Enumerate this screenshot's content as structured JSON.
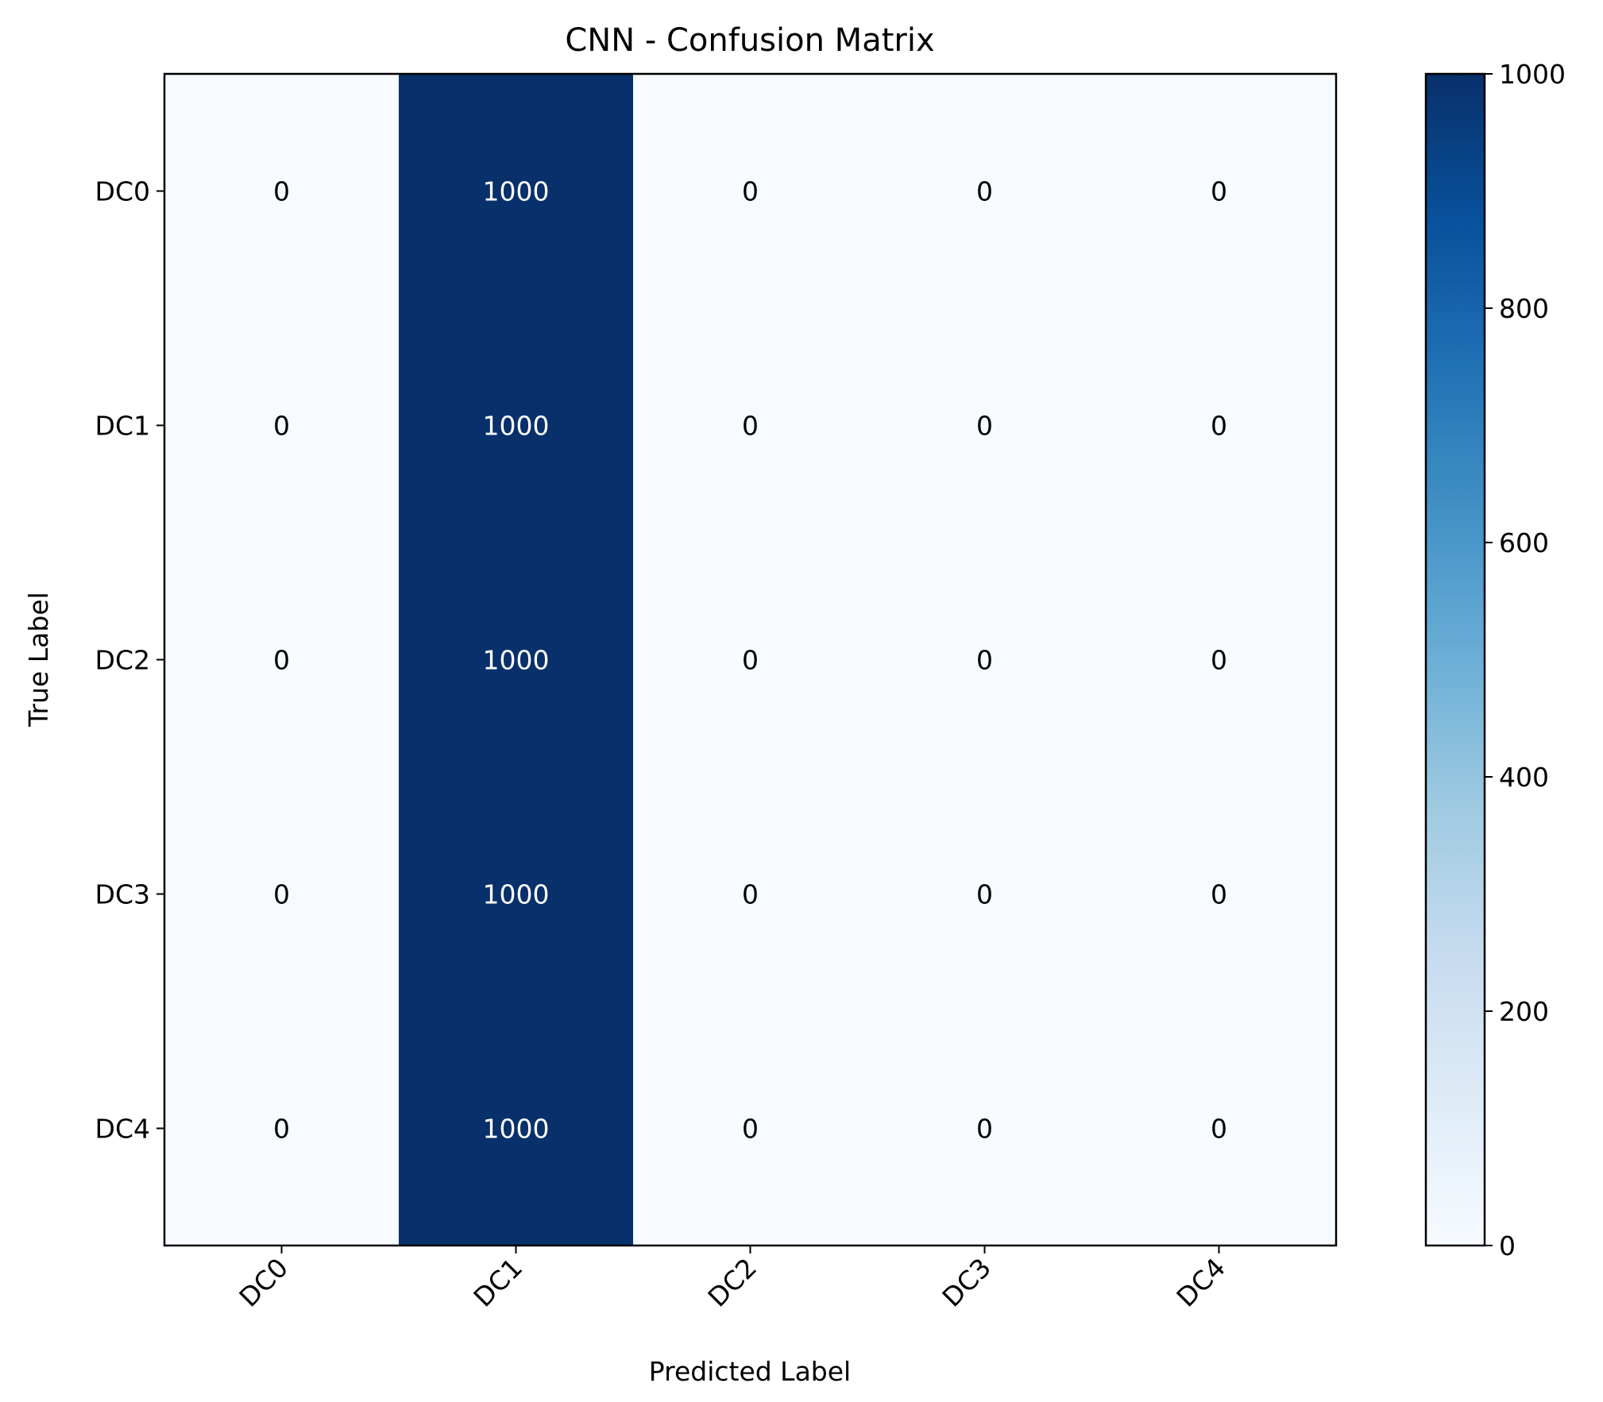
{
  "chart_data": {
    "type": "heatmap",
    "title": "CNN - Confusion Matrix",
    "xlabel": "Predicted Label",
    "ylabel": "True Label",
    "x_categories": [
      "DC0",
      "DC1",
      "DC2",
      "DC3",
      "DC4"
    ],
    "y_categories": [
      "DC0",
      "DC1",
      "DC2",
      "DC3",
      "DC4"
    ],
    "values": [
      [
        0,
        1000,
        0,
        0,
        0
      ],
      [
        0,
        1000,
        0,
        0,
        0
      ],
      [
        0,
        1000,
        0,
        0,
        0
      ],
      [
        0,
        1000,
        0,
        0,
        0
      ],
      [
        0,
        1000,
        0,
        0,
        0
      ]
    ],
    "colormap": "Blues",
    "colors": {
      "low": "#f7fbff",
      "high": "#08306b",
      "text_dark": "#000000",
      "text_light": "#ffffff"
    },
    "colorbar": {
      "range": [
        0,
        1000
      ],
      "ticks": [
        "0",
        "200",
        "400",
        "600",
        "800",
        "1000"
      ]
    },
    "xtick_rotation": 45
  }
}
